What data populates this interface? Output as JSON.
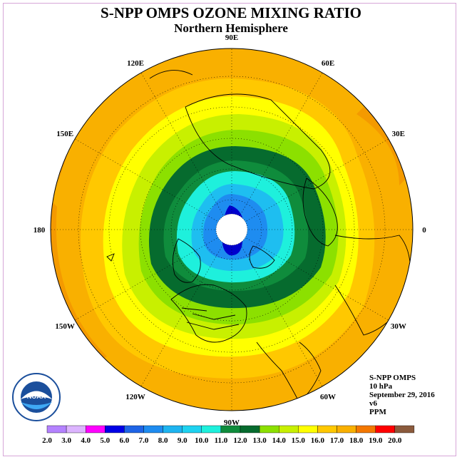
{
  "header": {
    "title": "S-NPP OMPS OZONE MIXING RATIO",
    "subtitle": "Northern Hemisphere"
  },
  "map": {
    "projection": "north polar stereographic",
    "longitude_labels": [
      {
        "text": "90E",
        "lon": 90
      },
      {
        "text": "60E",
        "lon": 60
      },
      {
        "text": "30E",
        "lon": 30
      },
      {
        "text": "0",
        "lon": 0
      },
      {
        "text": "30W",
        "lon": -30
      },
      {
        "text": "60W",
        "lon": -60
      },
      {
        "text": "90W",
        "lon": -90
      },
      {
        "text": "120W",
        "lon": -120
      },
      {
        "text": "150W",
        "lon": -150
      },
      {
        "text": "180",
        "lon": 180
      },
      {
        "text": "150E",
        "lon": 150
      },
      {
        "text": "120E",
        "lon": 120
      }
    ],
    "data_void_at_pole": true,
    "ozone_field_colors": {
      "outer_orange": "#f9b000",
      "deep_orange": "#f49a00",
      "orange_light": "#ffc800",
      "yellow": "#ffff00",
      "lime": "#c8f000",
      "light_green": "#8ce000",
      "dark_green": "#066b2e",
      "green": "#0f8c3c",
      "cyan": "#1ef0f0",
      "light_blue": "#1ebef0",
      "blue": "#1e8cf0",
      "deep_blue": "#0000cd"
    }
  },
  "info": {
    "line1": "S-NPP OMPS",
    "line2": "10 hPa",
    "line3": "September 29, 2016",
    "line4": "v6",
    "line5": "PPM"
  },
  "colorbar": {
    "labels": [
      "2.0",
      "3.0",
      "4.0",
      "5.0",
      "6.0",
      "7.0",
      "8.0",
      "9.0",
      "10.0",
      "11.0",
      "12.0",
      "13.0",
      "14.0",
      "15.0",
      "16.0",
      "17.0",
      "18.0",
      "19.0",
      "20.0"
    ],
    "colors": [
      "#b482ff",
      "#dcb4ff",
      "#ff00ff",
      "#0000e6",
      "#1e64e6",
      "#1e8cf0",
      "#1eb4f0",
      "#1ed2f0",
      "#1ef0dc",
      "#0f8c3c",
      "#066b2e",
      "#8ce000",
      "#c8f000",
      "#ffff00",
      "#ffc800",
      "#f9b000",
      "#f47800",
      "#ff0000",
      "#8b5a3c"
    ]
  },
  "logo": {
    "text": "NOAA",
    "icon": "noaa-logo-icon"
  }
}
